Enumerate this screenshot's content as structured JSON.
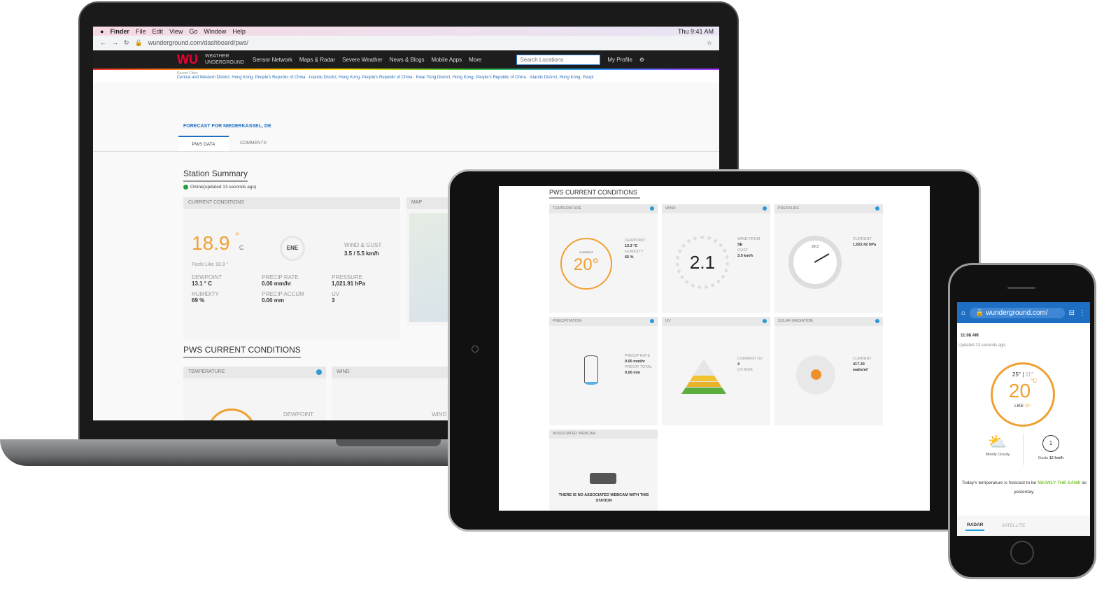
{
  "laptop": {
    "menubar": {
      "apple": "",
      "items": [
        "Finder",
        "File",
        "Edit",
        "View",
        "Go",
        "Window",
        "Help"
      ],
      "clock": "Thu 9:41 AM"
    },
    "browser": {
      "url": "wunderground.com/dashboard/pws/"
    },
    "nav": {
      "logo": "WU",
      "logo_text": "WEATHER UNDERGROUND",
      "items": [
        "Sensor Network",
        "Maps & Radar",
        "Severe Weather",
        "News & Blogs",
        "Mobile Apps",
        "More"
      ],
      "search_placeholder": "Search Locations",
      "profile": "My Profile"
    },
    "recent": {
      "label": "Recent Cities",
      "cities": "Central and Western District, Hong Kong, People's Republic of China · Islands District, Hong Kong, People's Republic of China · Kwai Tsing District, Hong Kong, People's Republic of China · Islands District, Hong Kong, Peopl"
    },
    "forecast_title": "FORECAST FOR NIEDERKASSEL, DE",
    "tabs": [
      {
        "label": "PWS DATA",
        "active": true
      },
      {
        "label": "COMMENTS",
        "active": false
      }
    ],
    "station_summary": "Station Summary",
    "status": "Online(updated 13 seconds ago)",
    "status_color": "#1e9e3e",
    "current": {
      "header": "CURRENT CONDITIONS",
      "temp": "18.9",
      "deg": "°",
      "unit": "C",
      "feels": "Feels Like 18.9 °",
      "wind_dir": "ENE",
      "wind_label": "WIND & GUST",
      "wind_val": "3.5 / 5.5 km/h",
      "stats": [
        {
          "label": "DEWPOINT",
          "value": "13.1 ° C"
        },
        {
          "label": "PRECIP RATE",
          "value": "0.00 mm/hr"
        },
        {
          "label": "PRESSURE",
          "value": "1,021.91 hPa"
        },
        {
          "label": "HUMIDITY",
          "value": "69 %"
        },
        {
          "label": "PRECIP ACCUM",
          "value": "0.00 mm"
        },
        {
          "label": "UV",
          "value": "3"
        }
      ]
    },
    "map_header": "MAP",
    "pws_title": "PWS CURRENT CONDITIONS",
    "pws_cards": [
      {
        "label": "TEMPERATURE"
      },
      {
        "label": "WIND"
      }
    ],
    "dewpoint_label": "DEWPOINT",
    "wind_label2": "WIND"
  },
  "tablet": {
    "title": "PWS CURRENT CONDITIONS",
    "temperature": {
      "header": "TEMPERATURE",
      "current_label": "CURRENT",
      "value": "20°",
      "dewpoint_label": "DEWPOINT",
      "dewpoint": "13.3 °C",
      "humidity_label": "HUMIDITY",
      "humidity": "65 %"
    },
    "wind": {
      "header": "WIND",
      "value": "2.1",
      "from_label": "WIND FROM",
      "from": "SE",
      "gust_label": "GUST",
      "gust": "3.5 km/h"
    },
    "pressure": {
      "header": "PRESSURE",
      "current_label": "CURRENT",
      "value": "1,022.42 hPa",
      "gauge_top": "29.3"
    },
    "precipitation": {
      "header": "PRECIPITATION",
      "rate_label": "PRECIP RATE",
      "rate": "0.00 mm/hr",
      "total_label": "PRECIP TOTAL",
      "total": "0.00 mm"
    },
    "uv": {
      "header": "UV",
      "current_label": "CURRENT UV",
      "value": "4",
      "risk_label": "UV RISK"
    },
    "solar": {
      "header": "SOLAR RADIATION",
      "current_label": "CURRENT",
      "value": "417.30",
      "unit": "watts/m²"
    },
    "webcam": {
      "header": "ASSOCIATED WEBCAM",
      "message": "THERE IS NO ASSOCIATED WEBCAM WITH THIS STATION"
    }
  },
  "phone": {
    "url": "wunderground.com/",
    "time": "11:08 AM",
    "updated": "Updated 13 seconds ago",
    "high": "25°",
    "low": "11°",
    "temp": "20",
    "unit": "°C",
    "like_label": "LIKE",
    "like": "20°",
    "condition": "Mostly Cloudy",
    "gust_label": "Gusts",
    "gust": "12 km/h",
    "wind_val": "1",
    "forecast_pre": "Today's temperature is forecast to be ",
    "forecast_em": "NEARLY THE SAME",
    "forecast_post": " as yesterday.",
    "tabs": [
      "RADAR",
      "SATELLITE"
    ]
  },
  "colors": {
    "accent_orange": "#f0a030",
    "brand_blue": "#1e6fc4",
    "green": "#7cc52e"
  }
}
